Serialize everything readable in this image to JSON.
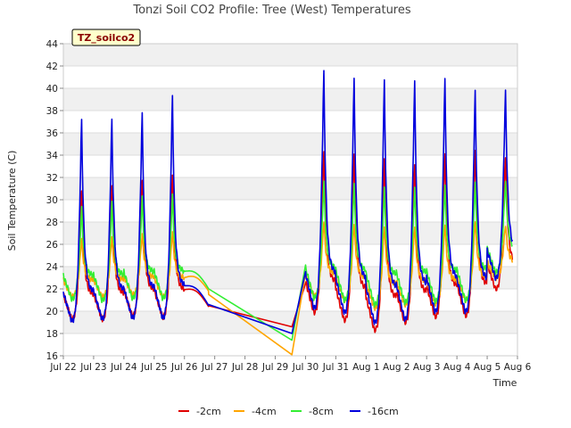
{
  "chart_data": {
    "type": "line",
    "title": "Tonzi Soil CO2 Profile: Tree (West) Temperatures",
    "badge": "TZ_soilco2",
    "xlabel": "Time",
    "ylabel": "Soil Temperature (C)",
    "ylim": [
      16,
      44
    ],
    "yticks": [
      "16",
      "18",
      "20",
      "22",
      "24",
      "26",
      "28",
      "30",
      "32",
      "34",
      "36",
      "38",
      "40",
      "42",
      "44"
    ],
    "xticks": [
      "Jul 22",
      "Jul 23",
      "Jul 24",
      "Jul 25",
      "Jul 26",
      "Jul 27",
      "Jul 28",
      "Jul 29",
      "Jul 30",
      "Jul 31",
      "Aug 1",
      "Aug 2",
      "Aug 3",
      "Aug 4",
      "Aug 5",
      "Aug 6"
    ],
    "grid": true,
    "legend_position": "bottom",
    "series": [
      {
        "name": "-2cm",
        "color": "#e00000",
        "gap": [
          4.8,
          7.55
        ],
        "gap_end": [
          20.5,
          18.6
        ],
        "baseline": 21.5,
        "amplitude": 10.5,
        "decay": 0.18,
        "days": [
          {
            "d": 0,
            "min": 19.3,
            "max": 31.5
          },
          {
            "d": 1,
            "min": 19.3,
            "max": 32.0
          },
          {
            "d": 2,
            "min": 19.6,
            "max": 32.5
          },
          {
            "d": 3,
            "min": 19.5,
            "max": 33.0
          },
          {
            "d": 4,
            "min": 20.4,
            "max": 20.4
          },
          {
            "d": 7,
            "min": 18.3,
            "max": 35.0
          },
          {
            "d": 8,
            "min": 19.9,
            "max": 35.2
          },
          {
            "d": 9,
            "min": 19.2,
            "max": 35.0
          },
          {
            "d": 10,
            "min": 18.3,
            "max": 34.6
          },
          {
            "d": 11,
            "min": 19.0,
            "max": 34.0
          },
          {
            "d": 12,
            "min": 19.5,
            "max": 35.0
          },
          {
            "d": 13,
            "min": 19.6,
            "max": 35.3
          },
          {
            "d": 14,
            "min": 22.0,
            "max": 34.5
          }
        ]
      },
      {
        "name": "-4cm",
        "color": "#ffa500",
        "gap": [
          4.8,
          7.55
        ],
        "gap_end": [
          21.5,
          16.1
        ],
        "baseline": 22.4,
        "amplitude": 5.5,
        "decay": 0.28,
        "days": [
          {
            "d": 0,
            "min": 21.3,
            "max": 26.7
          },
          {
            "d": 1,
            "min": 21.3,
            "max": 26.9
          },
          {
            "d": 2,
            "min": 21.5,
            "max": 27.2
          },
          {
            "d": 3,
            "min": 21.3,
            "max": 27.4
          },
          {
            "d": 4,
            "min": 21.8,
            "max": 21.8
          },
          {
            "d": 7,
            "min": 16.1,
            "max": 28.2
          },
          {
            "d": 8,
            "min": 21.4,
            "max": 28.4
          },
          {
            "d": 9,
            "min": 21.0,
            "max": 28.2
          },
          {
            "d": 10,
            "min": 20.3,
            "max": 28.0
          },
          {
            "d": 11,
            "min": 20.6,
            "max": 28.0
          },
          {
            "d": 12,
            "min": 20.7,
            "max": 28.2
          },
          {
            "d": 13,
            "min": 21.0,
            "max": 28.5
          },
          {
            "d": 14,
            "min": 23.0,
            "max": 28.0
          }
        ]
      },
      {
        "name": "-8cm",
        "color": "#33ee33",
        "gap": [
          4.8,
          7.55
        ],
        "gap_end": [
          22.0,
          17.4
        ],
        "baseline": 22.6,
        "amplitude": 7.5,
        "decay": 0.25,
        "days": [
          {
            "d": 0,
            "min": 21.1,
            "max": 29.5
          },
          {
            "d": 1,
            "min": 21.0,
            "max": 30.0
          },
          {
            "d": 2,
            "min": 21.2,
            "max": 30.5
          },
          {
            "d": 3,
            "min": 21.2,
            "max": 30.7
          },
          {
            "d": 4,
            "min": 22.0,
            "max": 22.0
          },
          {
            "d": 7,
            "min": 17.4,
            "max": 31.8
          },
          {
            "d": 8,
            "min": 21.2,
            "max": 32.0
          },
          {
            "d": 9,
            "min": 21.0,
            "max": 31.8
          },
          {
            "d": 10,
            "min": 20.6,
            "max": 31.5
          },
          {
            "d": 11,
            "min": 20.8,
            "max": 31.5
          },
          {
            "d": 12,
            "min": 20.9,
            "max": 31.7
          },
          {
            "d": 13,
            "min": 21.0,
            "max": 32.0
          },
          {
            "d": 14,
            "min": 23.5,
            "max": 32.0
          }
        ]
      },
      {
        "name": "-16cm",
        "color": "#0000dd",
        "gap": [
          4.8,
          7.55
        ],
        "gap_end": [
          20.6,
          18.0
        ],
        "baseline": 21.0,
        "amplitude": 20.0,
        "decay": 0.14,
        "days": [
          {
            "d": 0,
            "min": 19.1,
            "max": 37.8
          },
          {
            "d": 1,
            "min": 19.3,
            "max": 37.8
          },
          {
            "d": 2,
            "min": 19.4,
            "max": 38.4
          },
          {
            "d": 3,
            "min": 19.4,
            "max": 40.0
          },
          {
            "d": 4,
            "min": 20.5,
            "max": 20.5
          },
          {
            "d": 7,
            "min": 18.0,
            "max": 42.1
          },
          {
            "d": 8,
            "min": 20.3,
            "max": 42.3
          },
          {
            "d": 9,
            "min": 19.9,
            "max": 41.6
          },
          {
            "d": 10,
            "min": 19.0,
            "max": 41.5
          },
          {
            "d": 11,
            "min": 19.3,
            "max": 41.4
          },
          {
            "d": 12,
            "min": 20.0,
            "max": 41.6
          },
          {
            "d": 13,
            "min": 20.0,
            "max": 40.5
          },
          {
            "d": 14,
            "min": 23.0,
            "max": 40.4
          }
        ]
      }
    ]
  }
}
